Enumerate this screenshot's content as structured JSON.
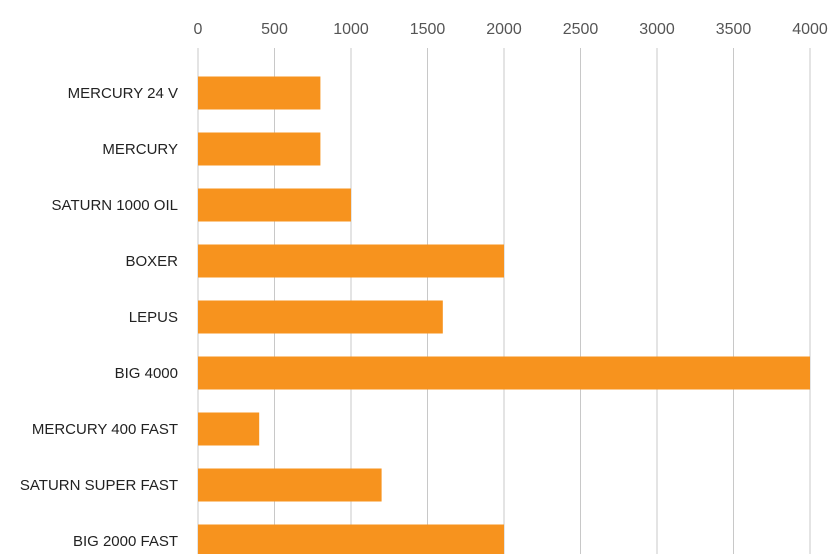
{
  "chart_data": {
    "type": "bar",
    "orientation": "horizontal",
    "categories": [
      "MERCURY 24 V",
      "MERCURY",
      "SATURN 1000 OIL",
      "BOXER",
      "LEPUS",
      "BIG 4000",
      "MERCURY 400 FAST",
      "SATURN SUPER FAST",
      "BIG 2000 FAST"
    ],
    "values": [
      800,
      800,
      1000,
      2000,
      1600,
      4000,
      400,
      1200,
      2000
    ],
    "title": "",
    "xlabel": "",
    "ylabel": "",
    "xlim": [
      0,
      4000
    ],
    "x_ticks": [
      "0",
      "500",
      "1000",
      "1500",
      "2000",
      "2500",
      "3000",
      "3500",
      "4000"
    ],
    "x_axis_position": "top",
    "grid": "vertical",
    "legend": "none",
    "bar_color": "#f7931e",
    "grid_color": "#c8c8c8"
  }
}
